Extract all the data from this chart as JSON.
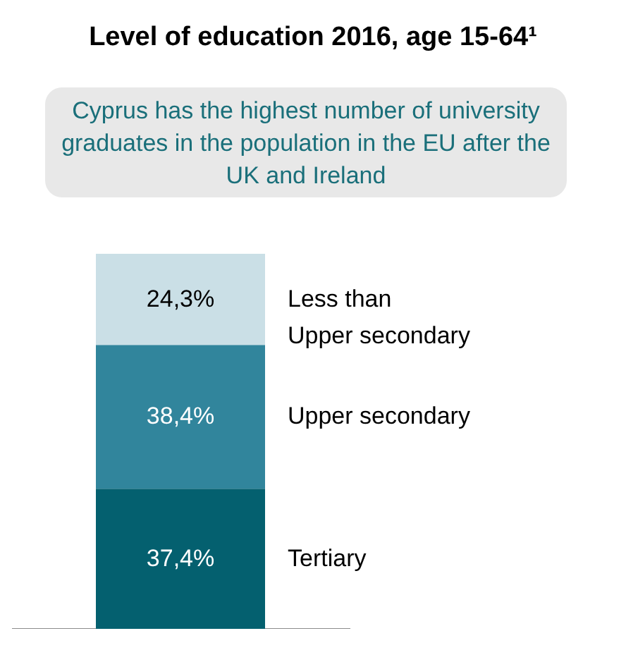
{
  "chart_data": {
    "type": "bar",
    "title": "Level of education 2016, age 15-64¹",
    "annotations": [
      "Cyprus has the highest number of university graduates in the population in the EU after the UK and Ireland"
    ],
    "categories": [
      null
    ],
    "stacked": true,
    "series": [
      {
        "name": "Tertiary",
        "color": "#04606f",
        "values": [
          37.4
        ],
        "value_labels": [
          "37,4%"
        ]
      },
      {
        "name": "Upper secondary",
        "color": "#31859c",
        "values": [
          38.4
        ],
        "value_labels": [
          "38,4%"
        ]
      },
      {
        "name": "Less than\nUpper secondary",
        "color": "#cadfe6",
        "values": [
          24.3
        ],
        "value_labels": [
          "24,3%"
        ]
      }
    ]
  }
}
